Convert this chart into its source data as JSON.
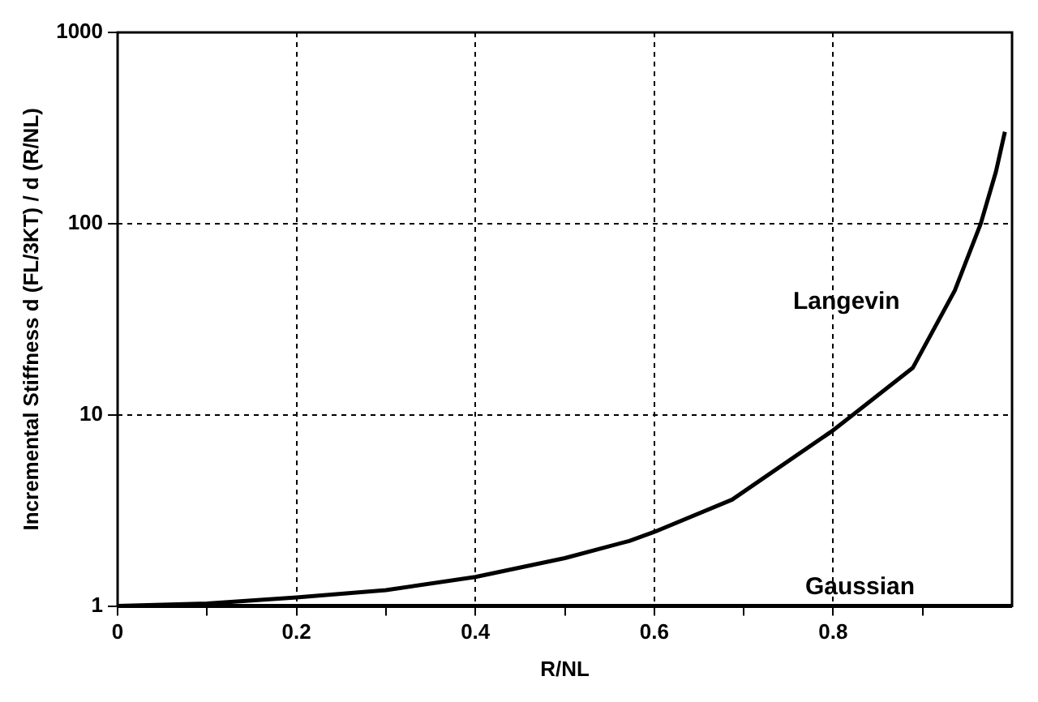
{
  "chart_data": {
    "type": "line",
    "xlabel": "R/NL",
    "ylabel": "Incremental Stiffness d (FL/3KT) / d (R/NL)",
    "xlim": [
      0,
      1
    ],
    "ylim": [
      1,
      1000
    ],
    "log": "y",
    "grid": true,
    "marker": "none",
    "line_style": "solid",
    "legend": false,
    "xticks": [
      0,
      {
        "value": 0.1,
        "label": null
      },
      0.2,
      {
        "value": 0.3,
        "label": null
      },
      0.4,
      {
        "value": 0.5,
        "label": null
      },
      0.6,
      {
        "value": 0.7,
        "label": null
      },
      0.8,
      {
        "value": 0.9,
        "label": null
      }
    ],
    "yticks": [
      1,
      10,
      100,
      1000
    ],
    "series": [
      {
        "name": "Langevin",
        "color": "#000000",
        "x": [
          0,
          0.1,
          0.2,
          0.3,
          0.4,
          0.5,
          0.572,
          0.6,
          0.687,
          0.8,
          0.889,
          0.936,
          0.965,
          0.982,
          0.992
        ],
        "values": [
          1,
          1.03,
          1.11,
          1.21,
          1.42,
          1.78,
          2.19,
          2.44,
          3.6,
          8.3,
          17.6,
          44.7,
          100,
          187,
          302
        ]
      },
      {
        "name": "Gaussian",
        "color": "#000000",
        "x": [
          0,
          1
        ],
        "values": [
          1,
          1
        ]
      }
    ]
  }
}
